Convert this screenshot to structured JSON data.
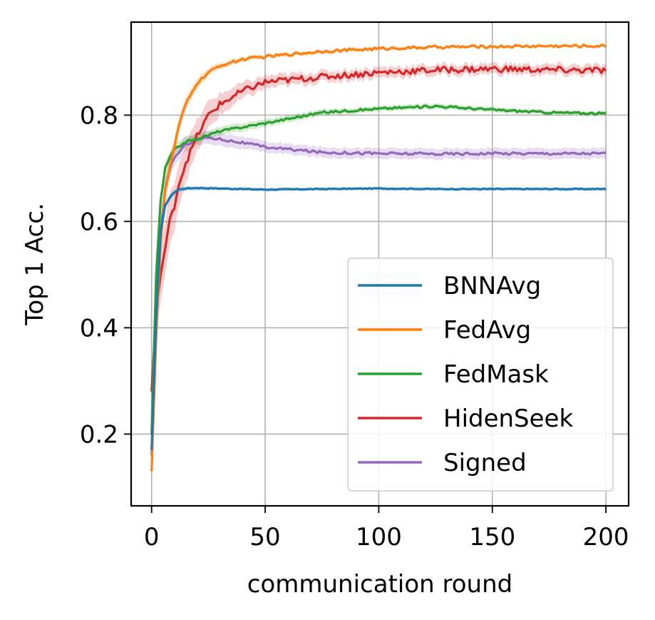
{
  "chart_data": {
    "type": "line",
    "title": "",
    "xlabel": "communication round",
    "ylabel": "Top 1 Acc.",
    "xlim": [
      -9,
      210
    ],
    "ylim": [
      0.065,
      0.975
    ],
    "xticks": [
      0,
      50,
      100,
      150,
      200
    ],
    "xtick_labels": [
      "0",
      "50",
      "100",
      "150",
      "200"
    ],
    "yticks": [
      0.2,
      0.4,
      0.6,
      0.8
    ],
    "ytick_labels": [
      "0.2",
      "0.4",
      "0.6",
      "0.8"
    ],
    "grid": true,
    "legend_position": "lower-right",
    "series": [
      {
        "name": "BNNAvg",
        "color": "#1f77b4",
        "x": [
          0,
          2,
          4,
          6,
          8,
          10,
          12,
          15,
          20,
          30,
          50,
          75,
          100,
          125,
          150,
          175,
          200
        ],
        "y": [
          0.17,
          0.42,
          0.58,
          0.63,
          0.645,
          0.655,
          0.66,
          0.662,
          0.663,
          0.662,
          0.66,
          0.661,
          0.662,
          0.661,
          0.661,
          0.661,
          0.661
        ],
        "band": [
          0.004,
          0.01,
          0.01,
          0.008,
          0.006,
          0.005,
          0.005,
          0.004,
          0.004,
          0.003,
          0.003,
          0.003,
          0.003,
          0.003,
          0.003,
          0.003,
          0.003
        ]
      },
      {
        "name": "FedAvg",
        "color": "#ff7f0e",
        "x": [
          0,
          2,
          4,
          6,
          8,
          10,
          12,
          15,
          20,
          25,
          30,
          40,
          50,
          75,
          100,
          125,
          150,
          175,
          200
        ],
        "y": [
          0.13,
          0.38,
          0.56,
          0.66,
          0.7,
          0.74,
          0.78,
          0.82,
          0.86,
          0.88,
          0.893,
          0.905,
          0.91,
          0.92,
          0.925,
          0.928,
          0.929,
          0.93,
          0.93
        ],
        "band": [
          0.02,
          0.03,
          0.03,
          0.025,
          0.02,
          0.018,
          0.015,
          0.012,
          0.01,
          0.008,
          0.006,
          0.005,
          0.004,
          0.004,
          0.004,
          0.003,
          0.003,
          0.003,
          0.003
        ]
      },
      {
        "name": "FedMask",
        "color": "#2ca02c",
        "x": [
          0,
          2,
          4,
          6,
          8,
          10,
          15,
          20,
          30,
          50,
          75,
          100,
          125,
          150,
          175,
          200
        ],
        "y": [
          0.2,
          0.5,
          0.64,
          0.7,
          0.72,
          0.735,
          0.75,
          0.755,
          0.77,
          0.785,
          0.805,
          0.812,
          0.817,
          0.81,
          0.805,
          0.803
        ],
        "band": [
          0.02,
          0.02,
          0.015,
          0.012,
          0.01,
          0.01,
          0.01,
          0.008,
          0.008,
          0.007,
          0.006,
          0.005,
          0.005,
          0.005,
          0.004,
          0.004
        ]
      },
      {
        "name": "HidenSeek",
        "color": "#d62728",
        "x": [
          0,
          2,
          4,
          6,
          8,
          10,
          12,
          15,
          20,
          25,
          30,
          40,
          50,
          75,
          100,
          125,
          150,
          175,
          200
        ],
        "y": [
          0.28,
          0.43,
          0.5,
          0.55,
          0.6,
          0.63,
          0.67,
          0.71,
          0.76,
          0.8,
          0.82,
          0.845,
          0.862,
          0.872,
          0.88,
          0.885,
          0.887,
          0.885,
          0.884
        ],
        "band": [
          0.03,
          0.04,
          0.05,
          0.05,
          0.05,
          0.045,
          0.04,
          0.035,
          0.03,
          0.025,
          0.02,
          0.015,
          0.012,
          0.01,
          0.01,
          0.01,
          0.01,
          0.01,
          0.01
        ]
      },
      {
        "name": "Signed",
        "color": "#9467bd",
        "x": [
          0,
          2,
          4,
          6,
          8,
          10,
          15,
          20,
          25,
          30,
          40,
          50,
          75,
          100,
          125,
          150,
          175,
          200
        ],
        "y": [
          0.16,
          0.43,
          0.58,
          0.66,
          0.7,
          0.72,
          0.745,
          0.755,
          0.758,
          0.755,
          0.748,
          0.74,
          0.73,
          0.728,
          0.727,
          0.728,
          0.728,
          0.728
        ],
        "band": [
          0.02,
          0.03,
          0.025,
          0.02,
          0.018,
          0.015,
          0.015,
          0.012,
          0.012,
          0.012,
          0.012,
          0.01,
          0.01,
          0.01,
          0.01,
          0.01,
          0.01,
          0.01
        ]
      }
    ]
  }
}
